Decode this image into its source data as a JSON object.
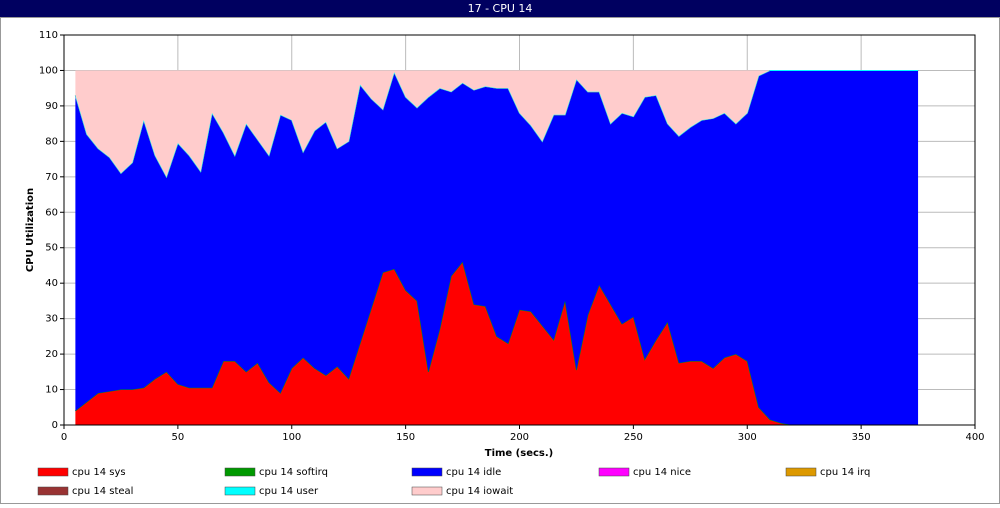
{
  "chart_data": {
    "type": "stacked_area",
    "title": "17 - CPU 14",
    "x_label": "Time (secs.)",
    "y_label": "CPU Utilization",
    "xlim": [
      0,
      400
    ],
    "xticks": [
      0,
      50,
      100,
      150,
      200,
      250,
      300,
      350,
      400
    ],
    "ylim": [
      0,
      110
    ],
    "yticks": [
      0,
      10,
      20,
      30,
      40,
      50,
      60,
      70,
      80,
      90,
      100,
      110
    ],
    "grid": true,
    "x": [
      5,
      10,
      15,
      20,
      25,
      30,
      35,
      40,
      45,
      50,
      55,
      60,
      65,
      70,
      75,
      80,
      85,
      90,
      95,
      100,
      105,
      110,
      115,
      120,
      125,
      130,
      135,
      140,
      145,
      150,
      155,
      160,
      165,
      170,
      175,
      180,
      185,
      190,
      195,
      200,
      205,
      210,
      215,
      220,
      225,
      230,
      235,
      240,
      245,
      250,
      255,
      260,
      265,
      270,
      275,
      280,
      285,
      290,
      295,
      300,
      305,
      310,
      315,
      320,
      325,
      330,
      335,
      340,
      345,
      350,
      355,
      360,
      365,
      370,
      375
    ],
    "series": [
      {
        "name": "cpu 14 sys",
        "color": "#ff0000",
        "values": [
          4,
          6.5,
          9,
          9.5,
          10,
          10,
          10.5,
          13,
          15,
          11.5,
          10.5,
          10.5,
          10.5,
          18,
          18,
          15,
          17.5,
          12,
          9,
          16,
          19,
          16,
          14,
          16.5,
          13,
          23,
          33,
          43,
          44,
          38,
          35,
          15,
          27,
          42,
          46,
          34,
          33.5,
          25,
          23,
          32.5,
          32,
          28,
          24,
          35,
          15.5,
          31,
          39.5,
          34,
          28.5,
          30.5,
          18.5,
          24,
          29,
          17.5,
          18,
          18,
          16,
          19,
          20,
          18,
          5,
          1.5,
          0.5,
          0,
          0,
          0,
          0,
          0,
          0,
          0,
          0,
          0,
          0,
          0,
          0
        ]
      },
      {
        "name": "cpu 14 softirq",
        "color": "#009900",
        "values": [
          0,
          0,
          0,
          0,
          0,
          0,
          0,
          0,
          0,
          0,
          0,
          0,
          0,
          0,
          0,
          0,
          0,
          0,
          0,
          0,
          0,
          0,
          0,
          0,
          0,
          0,
          0,
          0,
          0,
          0,
          0,
          0,
          0,
          0,
          0,
          0,
          0,
          0,
          0,
          0,
          0,
          0,
          0,
          0,
          0,
          0,
          0,
          0,
          0,
          0,
          0,
          0,
          0,
          0,
          0,
          0,
          0,
          0,
          0,
          0,
          0,
          0,
          0,
          0,
          0,
          0,
          0,
          0,
          0,
          0,
          0,
          0,
          0,
          0,
          0
        ]
      },
      {
        "name": "cpu 14 idle",
        "color": "#0000ff",
        "values": [
          89,
          75.5,
          69,
          66,
          61,
          64,
          75.5,
          63,
          55,
          68,
          65.5,
          61,
          77.5,
          64.5,
          58,
          70,
          63,
          64,
          78.5,
          70,
          58,
          67,
          71.5,
          61.5,
          67,
          73,
          59,
          46,
          55.5,
          54.5,
          54.5,
          77.5,
          68,
          52,
          50.5,
          60.5,
          62,
          70,
          72,
          55.5,
          52.5,
          52,
          63.5,
          52.5,
          82,
          63,
          54.5,
          51,
          59.5,
          56.5,
          74,
          69,
          56,
          64,
          66,
          68,
          70.5,
          69,
          65,
          70,
          93.5,
          98.5,
          99.5,
          100,
          100,
          100,
          100,
          100,
          100,
          100,
          100,
          100,
          100,
          100,
          100
        ]
      },
      {
        "name": "cpu 14 nice",
        "color": "#ff00ff",
        "values": [
          0,
          0,
          0,
          0,
          0,
          0,
          0,
          0,
          0,
          0,
          0,
          0,
          0,
          0,
          0,
          0,
          0,
          0,
          0,
          0,
          0,
          0,
          0,
          0,
          0,
          0,
          0,
          0,
          0,
          0,
          0,
          0,
          0,
          0,
          0,
          0,
          0,
          0,
          0,
          0,
          0,
          0,
          0,
          0,
          0,
          0,
          0,
          0,
          0,
          0,
          0,
          0,
          0,
          0,
          0,
          0,
          0,
          0,
          0,
          0,
          0,
          0,
          0,
          0,
          0,
          0,
          0,
          0,
          0,
          0,
          0,
          0,
          0,
          0,
          0
        ]
      },
      {
        "name": "cpu 14 irq",
        "color": "#dd9900",
        "values": [
          0,
          0,
          0,
          0,
          0,
          0,
          0,
          0,
          0,
          0,
          0,
          0,
          0,
          0,
          0,
          0,
          0,
          0,
          0,
          0,
          0,
          0,
          0,
          0,
          0,
          0,
          0,
          0,
          0,
          0,
          0,
          0,
          0,
          0,
          0,
          0,
          0,
          0,
          0,
          0,
          0,
          0,
          0,
          0,
          0,
          0,
          0,
          0,
          0,
          0,
          0,
          0,
          0,
          0,
          0,
          0,
          0,
          0,
          0,
          0,
          0,
          0,
          0,
          0,
          0,
          0,
          0,
          0,
          0,
          0,
          0,
          0,
          0,
          0,
          0
        ]
      },
      {
        "name": "cpu 14 steal",
        "color": "#993333",
        "values": [
          0,
          0,
          0,
          0,
          0,
          0,
          0,
          0,
          0,
          0,
          0,
          0,
          0,
          0,
          0,
          0,
          0,
          0,
          0,
          0,
          0,
          0,
          0,
          0,
          0,
          0,
          0,
          0,
          0,
          0,
          0,
          0,
          0,
          0,
          0,
          0,
          0,
          0,
          0,
          0,
          0,
          0,
          0,
          0,
          0,
          0,
          0,
          0,
          0,
          0,
          0,
          0,
          0,
          0,
          0,
          0,
          0,
          0,
          0,
          0,
          0,
          0,
          0,
          0,
          0,
          0,
          0,
          0,
          0,
          0,
          0,
          0,
          0,
          0,
          0
        ]
      },
      {
        "name": "cpu 14 user",
        "color": "#00ffff",
        "values": [
          0,
          0,
          0,
          0,
          0,
          0,
          0,
          0,
          0,
          0,
          0,
          0,
          0,
          0,
          0,
          0,
          0,
          0,
          0,
          0,
          0,
          0,
          0,
          0,
          0,
          0,
          0,
          0,
          0,
          0,
          0,
          0,
          0,
          0,
          0,
          0,
          0,
          0,
          0,
          0,
          0,
          0,
          0,
          0,
          0,
          0,
          0,
          0,
          0,
          0,
          0,
          0,
          0,
          0,
          0,
          0,
          0,
          0,
          0,
          0,
          0,
          0,
          0,
          0,
          0,
          0,
          0,
          0,
          0,
          0,
          0,
          0,
          0,
          0,
          0
        ]
      },
      {
        "name": "cpu 14 iowait",
        "color": "#ffcccc",
        "values": [
          7,
          18,
          22,
          24.5,
          29,
          26,
          14,
          24,
          30,
          20.5,
          24,
          28.5,
          12,
          17.5,
          24,
          15,
          19.5,
          24,
          12.5,
          14,
          23,
          17,
          14.5,
          22,
          20,
          4,
          8,
          11,
          0.5,
          7.5,
          10.5,
          7.5,
          5,
          6,
          3.5,
          5.5,
          4.5,
          5,
          5,
          12,
          15.5,
          20,
          12.5,
          12.5,
          2.5,
          6,
          6,
          15,
          12,
          13,
          7.5,
          7,
          15,
          18.5,
          16,
          14,
          13.5,
          12,
          15,
          12,
          1.5,
          0,
          0,
          0,
          0,
          0,
          0,
          0,
          0,
          0,
          0,
          0,
          0,
          0,
          0
        ]
      }
    ]
  }
}
